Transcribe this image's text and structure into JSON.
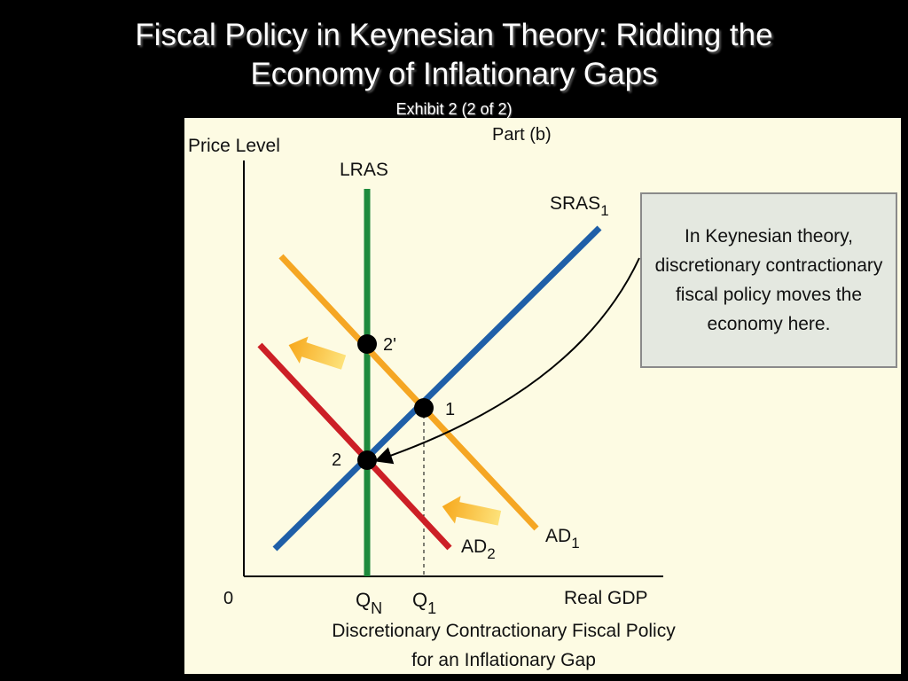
{
  "slide": {
    "title_line1": "Fiscal Policy in Keynesian Theory: Ridding the",
    "title_line2": "Economy of Inflationary Gaps",
    "subtitle": "Exhibit 2 (2 of 2)"
  },
  "figure": {
    "part": "Part (b)",
    "y_axis_label": "Price Level",
    "x_axis_label": "Real GDP",
    "origin_label": "0",
    "caption_line1": "Discretionary Contractionary Fiscal Policy",
    "caption_line2": "for an Inflationary Gap",
    "x_ticks": {
      "qn": {
        "base": "Q",
        "sub": "N"
      },
      "q1": {
        "base": "Q",
        "sub": "1"
      }
    },
    "curves": {
      "lras": {
        "label": "LRAS",
        "color": "#1e8a3c"
      },
      "sras1": {
        "base": "SRAS",
        "sub": "1",
        "color": "#1f5fa8"
      },
      "ad1": {
        "base": "AD",
        "sub": "1",
        "color": "#f5a623"
      },
      "ad2": {
        "base": "AD",
        "sub": "2",
        "color": "#cc1f26"
      }
    },
    "points": {
      "p1": "1",
      "p2": "2",
      "p2prime": "2'"
    },
    "shift_arrow_color": "#f7b830",
    "callout_text": "In Keynesian theory, discretionary contractionary fiscal policy moves the economy here."
  }
}
